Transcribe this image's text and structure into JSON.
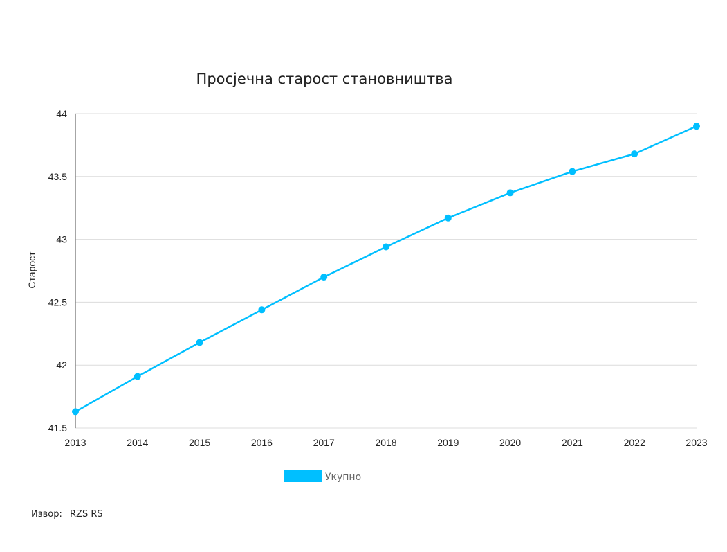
{
  "chart_data": {
    "type": "line",
    "title": "Просјечна старост становништва",
    "xlabel": "",
    "ylabel": "Старост",
    "categories": [
      "2013",
      "2014",
      "2015",
      "2016",
      "2017",
      "2018",
      "2019",
      "2020",
      "2021",
      "2022",
      "2023"
    ],
    "yticks": [
      "41.5",
      "42",
      "42.5",
      "43",
      "43.5",
      "44"
    ],
    "ylim": [
      41.5,
      44
    ],
    "grid": true,
    "legend_position": "bottom",
    "series": [
      {
        "name": "Укупно",
        "color": "#00bfff",
        "values": [
          41.63,
          41.91,
          42.18,
          42.44,
          42.7,
          42.94,
          43.17,
          43.37,
          43.54,
          43.68,
          43.9
        ]
      }
    ]
  },
  "source": {
    "label": "Извор:",
    "value": "RZS RS"
  }
}
